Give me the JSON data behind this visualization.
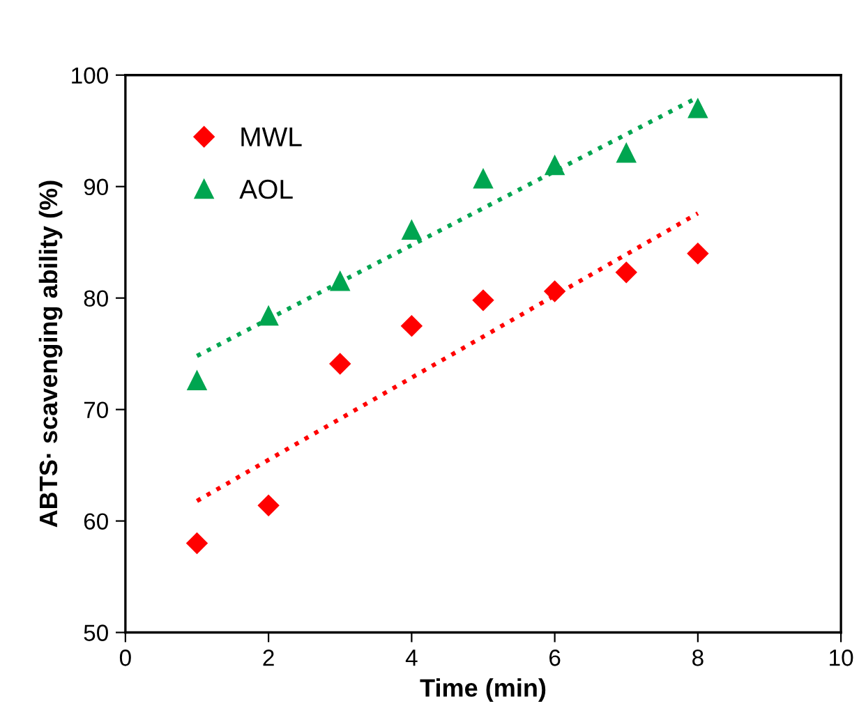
{
  "chart_data": {
    "type": "scatter",
    "xlabel": "Time (min)",
    "ylabel": "ABTS· scavenging ability (%)",
    "xlim": [
      0,
      10
    ],
    "xticks": [
      0,
      2,
      4,
      6,
      8,
      10
    ],
    "ylim": [
      50,
      100
    ],
    "yticks": [
      50,
      60,
      70,
      80,
      90,
      100
    ],
    "grid": false,
    "legend": "top left",
    "series": [
      {
        "name": "MWL",
        "color": "#ff0000",
        "marker": "diamond",
        "x": [
          1,
          2,
          3,
          4,
          5,
          6,
          7,
          8
        ],
        "values": [
          58.0,
          61.4,
          74.1,
          77.5,
          79.8,
          80.6,
          82.3,
          84.0
        ]
      },
      {
        "name": "AOL",
        "color": "#00a550",
        "marker": "triangle",
        "x": [
          1,
          2,
          3,
          4,
          5,
          6,
          7,
          8
        ],
        "values": [
          72.6,
          78.4,
          81.5,
          86.1,
          90.7,
          91.9,
          93.0,
          97.0
        ]
      },
      {
        "type": "line",
        "color": "#ff0000",
        "line_style": "dotted",
        "marker": "none",
        "x": [
          1,
          8
        ],
        "values": [
          61.8,
          87.6
        ]
      },
      {
        "type": "line",
        "color": "#00a550",
        "line_style": "dotted",
        "marker": "none",
        "x": [
          1,
          8
        ],
        "values": [
          74.8,
          98.0
        ]
      }
    ]
  }
}
